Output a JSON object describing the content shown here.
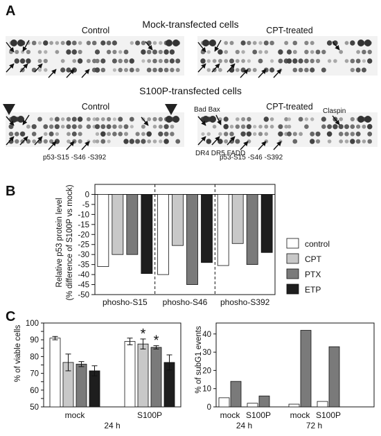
{
  "panel_a": {
    "letter": "A",
    "mock_title": "Mock-transfected cells",
    "s100p_title": "S100P-transfected cells",
    "control": "Control",
    "cpt_treated": "CPT-treated",
    "labels": {
      "bad_bax": "Bad Bax",
      "claspin": "Claspin",
      "dr": "DR4 DR5 FADD",
      "p53_left": "p53-S15 -S46 -S392",
      "p53_right": "p53-S15 -S46 -S392"
    }
  },
  "panel_b": {
    "letter": "B"
  },
  "panel_c": {
    "letter": "C"
  },
  "colors": {
    "control": "#ffffff",
    "cpt": "#c8c8c8",
    "ptx": "#7a7a7a",
    "etp": "#1e1e1e",
    "axis": "#111111"
  },
  "chart_data": [
    {
      "type": "bar",
      "panel": "B",
      "categories": [
        "phosho-S15",
        "phosho-S46",
        "phosho-S392"
      ],
      "series": [
        {
          "name": "control",
          "values": [
            -36,
            -40,
            -35.5
          ]
        },
        {
          "name": "CPT",
          "values": [
            -30,
            -25.5,
            -24.5
          ]
        },
        {
          "name": "PTX",
          "values": [
            -30,
            -45,
            -35
          ]
        },
        {
          "name": "ETP",
          "values": [
            -39.5,
            -34,
            -29
          ]
        }
      ],
      "ylabel": [
        "Relative p53 protein level",
        "(% difference of S100P vs mock)"
      ],
      "ylim": [
        -50,
        5
      ],
      "yticks": [
        0,
        -5,
        -10,
        -15,
        -20,
        -25,
        -30,
        -35,
        -40,
        -45,
        -50
      ],
      "legend_position": "right"
    },
    {
      "type": "bar",
      "panel": "C-left",
      "categories": [
        "mock",
        "S100P"
      ],
      "series": [
        {
          "name": "control",
          "values": [
            91,
            89
          ],
          "errors": [
            1,
            2
          ]
        },
        {
          "name": "CPT",
          "values": [
            76.5,
            87.5
          ],
          "errors": [
            5,
            3
          ]
        },
        {
          "name": "PTX",
          "values": [
            75.5,
            85.5
          ],
          "errors": [
            1.5,
            1
          ]
        },
        {
          "name": "ETP",
          "values": [
            71.5,
            76.5
          ],
          "errors": [
            3,
            4.5
          ]
        }
      ],
      "significance": [
        "",
        "*",
        "*",
        ""
      ],
      "ylabel": "% of viable cells",
      "xlabel": "24 h",
      "ylim": [
        50,
        100
      ],
      "yticks": [
        50,
        55,
        60,
        65,
        70,
        75,
        80,
        85,
        90,
        95,
        100
      ]
    },
    {
      "type": "bar",
      "panel": "C-right",
      "categories": [
        "mock",
        "S100P",
        "mock",
        "S100P"
      ],
      "time_labels": [
        "24 h",
        "72 h"
      ],
      "series": [
        {
          "name": "control",
          "values": [
            5,
            2,
            1.5,
            3
          ]
        },
        {
          "name": "PTX",
          "values": [
            14,
            6,
            42,
            33
          ]
        }
      ],
      "ylabel": "% of subG1 events",
      "ylim": [
        0,
        46
      ],
      "yticks": [
        0,
        10,
        20,
        30,
        40
      ]
    }
  ]
}
